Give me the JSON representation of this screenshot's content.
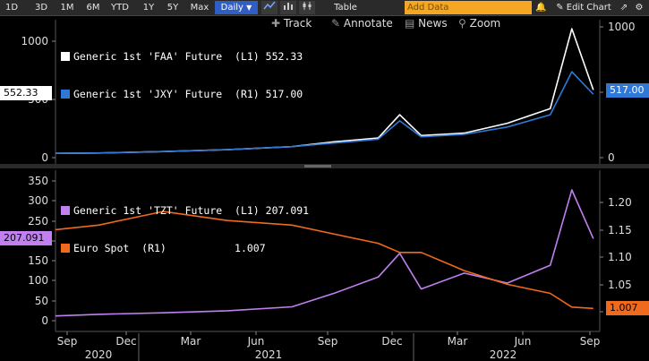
{
  "toolbar": {
    "ranges": [
      "1D",
      "3D",
      "1M",
      "6M",
      "YTD",
      "1Y",
      "5Y",
      "Max"
    ],
    "frequency": "Daily",
    "table_label": "Table",
    "add_data_placeholder": "Add Data",
    "edit_chart_label": "Edit Chart"
  },
  "subtoolbar": {
    "track": "Track",
    "annotate": "Annotate",
    "news": "News",
    "zoom": "Zoom"
  },
  "colors": {
    "faa": "#ffffff",
    "jxy": "#2f78d6",
    "tzt": "#c080f0",
    "euro": "#f06a1e"
  },
  "chart_data": [
    {
      "type": "line",
      "panel": "top",
      "series": [
        {
          "name": "Generic 1st 'FAA' Future",
          "axis": "L1",
          "last": "552.33",
          "x": [
            "2020-08",
            "2020-10",
            "2021-01",
            "2021-04",
            "2021-07",
            "2021-09",
            "2021-11",
            "2021-12",
            "2022-01",
            "2022-03",
            "2022-05",
            "2022-07",
            "2022-08",
            "2022-09"
          ],
          "values": [
            35,
            38,
            50,
            65,
            90,
            130,
            160,
            350,
            180,
            200,
            280,
            400,
            1050,
            552
          ]
        },
        {
          "name": "Generic 1st 'JXY' Future",
          "axis": "R1",
          "last": "517.00",
          "x": [
            "2020-08",
            "2020-10",
            "2021-01",
            "2021-04",
            "2021-07",
            "2021-09",
            "2021-11",
            "2021-12",
            "2022-01",
            "2022-03",
            "2022-05",
            "2022-07",
            "2022-08",
            "2022-09"
          ],
          "values": [
            35,
            38,
            50,
            65,
            90,
            120,
            150,
            300,
            170,
            190,
            250,
            350,
            700,
            517
          ]
        }
      ],
      "left_ticks": [
        "1000",
        "500",
        "0"
      ],
      "right_ticks": [
        "1000",
        "500",
        "0"
      ],
      "left_tag": "552.33",
      "right_tag": "517.00"
    },
    {
      "type": "line",
      "panel": "bottom",
      "series": [
        {
          "name": "Generic 1st 'TZT' Future",
          "axis": "L1",
          "last": "207.091",
          "x": [
            "2020-08",
            "2020-10",
            "2021-01",
            "2021-04",
            "2021-07",
            "2021-09",
            "2021-11",
            "2021-12",
            "2022-01",
            "2022-03",
            "2022-05",
            "2022-07",
            "2022-08",
            "2022-09"
          ],
          "values": [
            12,
            16,
            20,
            25,
            35,
            70,
            110,
            170,
            80,
            120,
            95,
            140,
            330,
            207
          ]
        },
        {
          "name": "Euro Spot",
          "axis": "R1",
          "last": "1.007",
          "x": [
            "2020-08",
            "2020-10",
            "2021-01",
            "2021-04",
            "2021-07",
            "2021-09",
            "2021-11",
            "2021-12",
            "2022-01",
            "2022-03",
            "2022-05",
            "2022-07",
            "2022-08",
            "2022-09"
          ],
          "values": [
            1.18,
            1.19,
            1.22,
            1.2,
            1.19,
            1.17,
            1.15,
            1.13,
            1.13,
            1.09,
            1.06,
            1.04,
            1.01,
            1.007
          ]
        }
      ],
      "left_ticks": [
        "350",
        "300",
        "250",
        "200",
        "150",
        "100",
        "50",
        "0"
      ],
      "right_ticks": [
        "1.20",
        "1.15",
        "1.10",
        "1.05",
        "1.00"
      ],
      "left_tag": "207.091",
      "right_tag": "1.007"
    }
  ],
  "xaxis": {
    "months": [
      "Sep",
      "Dec",
      "Mar",
      "Jun",
      "Sep",
      "Dec",
      "Mar",
      "Jun",
      "Sep"
    ],
    "years": [
      "2020",
      "2021",
      "2022"
    ]
  }
}
